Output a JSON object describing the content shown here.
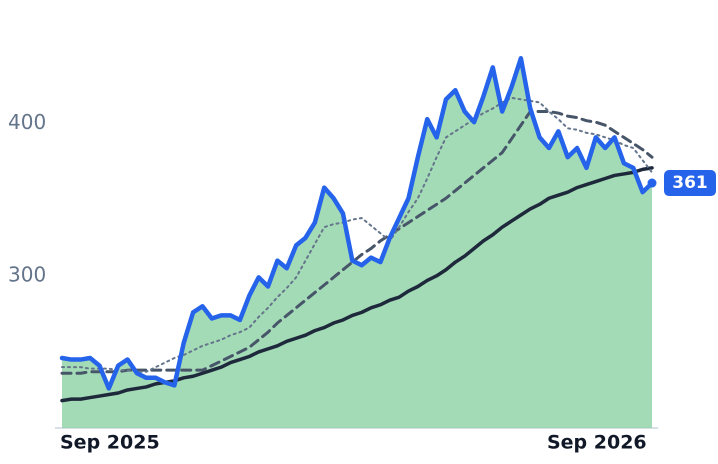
{
  "chart_data": {
    "type": "line",
    "categories": [
      "Sep 2025",
      null,
      null,
      null,
      null,
      null,
      null,
      null,
      null,
      null,
      null,
      null,
      null,
      null,
      null,
      null,
      null,
      null,
      null,
      null,
      null,
      null,
      null,
      null,
      null,
      null,
      null,
      null,
      null,
      null,
      null,
      null,
      null,
      null,
      null,
      null,
      null,
      null,
      null,
      null,
      null,
      null,
      null,
      null,
      null,
      null,
      null,
      null,
      null,
      null,
      null,
      null,
      "Sep 2026",
      null,
      null,
      null,
      null,
      null,
      null,
      null,
      null,
      null,
      null,
      null
    ],
    "ylim": [
      200,
      480
    ],
    "yticks": [
      300,
      400
    ],
    "area_color": "#86cf9f",
    "series": [
      {
        "color": "#2563eb",
        "style": "solid",
        "width": 4.5,
        "area": true,
        "values": [
          246,
          245,
          245,
          246,
          241,
          226,
          241,
          245,
          236,
          233,
          233,
          230,
          228,
          256,
          276,
          280,
          272,
          274,
          274,
          271,
          287,
          299,
          293,
          310,
          305,
          320,
          325,
          335,
          358,
          351,
          341,
          310,
          307,
          312,
          309,
          325,
          338,
          351,
          378,
          403,
          391,
          416,
          422,
          408,
          401,
          418,
          437,
          408,
          424,
          443,
          410,
          391,
          384,
          395,
          378,
          384,
          371,
          391,
          384,
          391,
          374,
          371,
          355,
          361
        ]
      },
      {
        "color": "#64748b",
        "style": "dotted",
        "width": 2,
        "values": [
          240,
          240,
          240,
          239,
          239,
          239,
          238,
          238,
          237,
          237,
          240,
          243,
          246,
          248,
          251,
          254,
          256,
          258,
          261,
          263,
          266,
          273,
          279,
          286,
          292,
          299,
          310,
          321,
          332,
          334,
          335,
          337,
          338,
          333,
          328,
          323,
          332,
          342,
          351,
          364,
          378,
          391,
          395,
          399,
          403,
          407,
          410,
          414,
          417,
          416,
          415,
          414,
          408,
          403,
          397,
          396,
          394,
          393,
          391,
          389,
          386,
          384,
          376,
          368
        ]
      },
      {
        "color": "#475569",
        "style": "dashed",
        "width": 3,
        "values": [
          236,
          236,
          236,
          237,
          237,
          237,
          237,
          238,
          238,
          238,
          238,
          238,
          238,
          238,
          238,
          238,
          241,
          244,
          247,
          250,
          253,
          258,
          263,
          269,
          274,
          279,
          284,
          289,
          294,
          299,
          304,
          309,
          314,
          318,
          323,
          327,
          331,
          335,
          339,
          343,
          347,
          351,
          356,
          361,
          366,
          371,
          376,
          381,
          390,
          399,
          408,
          408,
          408,
          407,
          405,
          404,
          402,
          401,
          399,
          395,
          391,
          387,
          383,
          378
        ]
      },
      {
        "color": "#1e293b",
        "style": "solid",
        "width": 3.5,
        "values": [
          218,
          219,
          219,
          220,
          221,
          222,
          223,
          225,
          226,
          227,
          229,
          230,
          231,
          233,
          234,
          236,
          238,
          240,
          243,
          245,
          247,
          250,
          252,
          254,
          257,
          259,
          261,
          264,
          266,
          269,
          271,
          274,
          276,
          279,
          281,
          284,
          286,
          290,
          293,
          297,
          300,
          304,
          309,
          313,
          318,
          323,
          327,
          332,
          336,
          340,
          344,
          347,
          351,
          353,
          355,
          358,
          360,
          362,
          364,
          366,
          367,
          368,
          370,
          371
        ]
      }
    ]
  }
}
